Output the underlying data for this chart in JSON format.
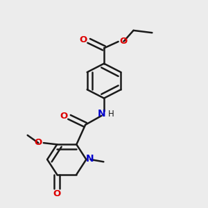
{
  "bg_color": "#ececec",
  "bond_color": "#1a1a1a",
  "oxygen_color": "#dd0000",
  "nitrogen_color": "#0000cc",
  "line_width": 1.8,
  "dbo": 0.03,
  "font_size": 9.5,
  "fig_size": [
    3.0,
    3.0
  ],
  "dpi": 100,
  "xlim": [
    0.3,
    2.7
  ],
  "ylim": [
    0.2,
    2.9
  ]
}
